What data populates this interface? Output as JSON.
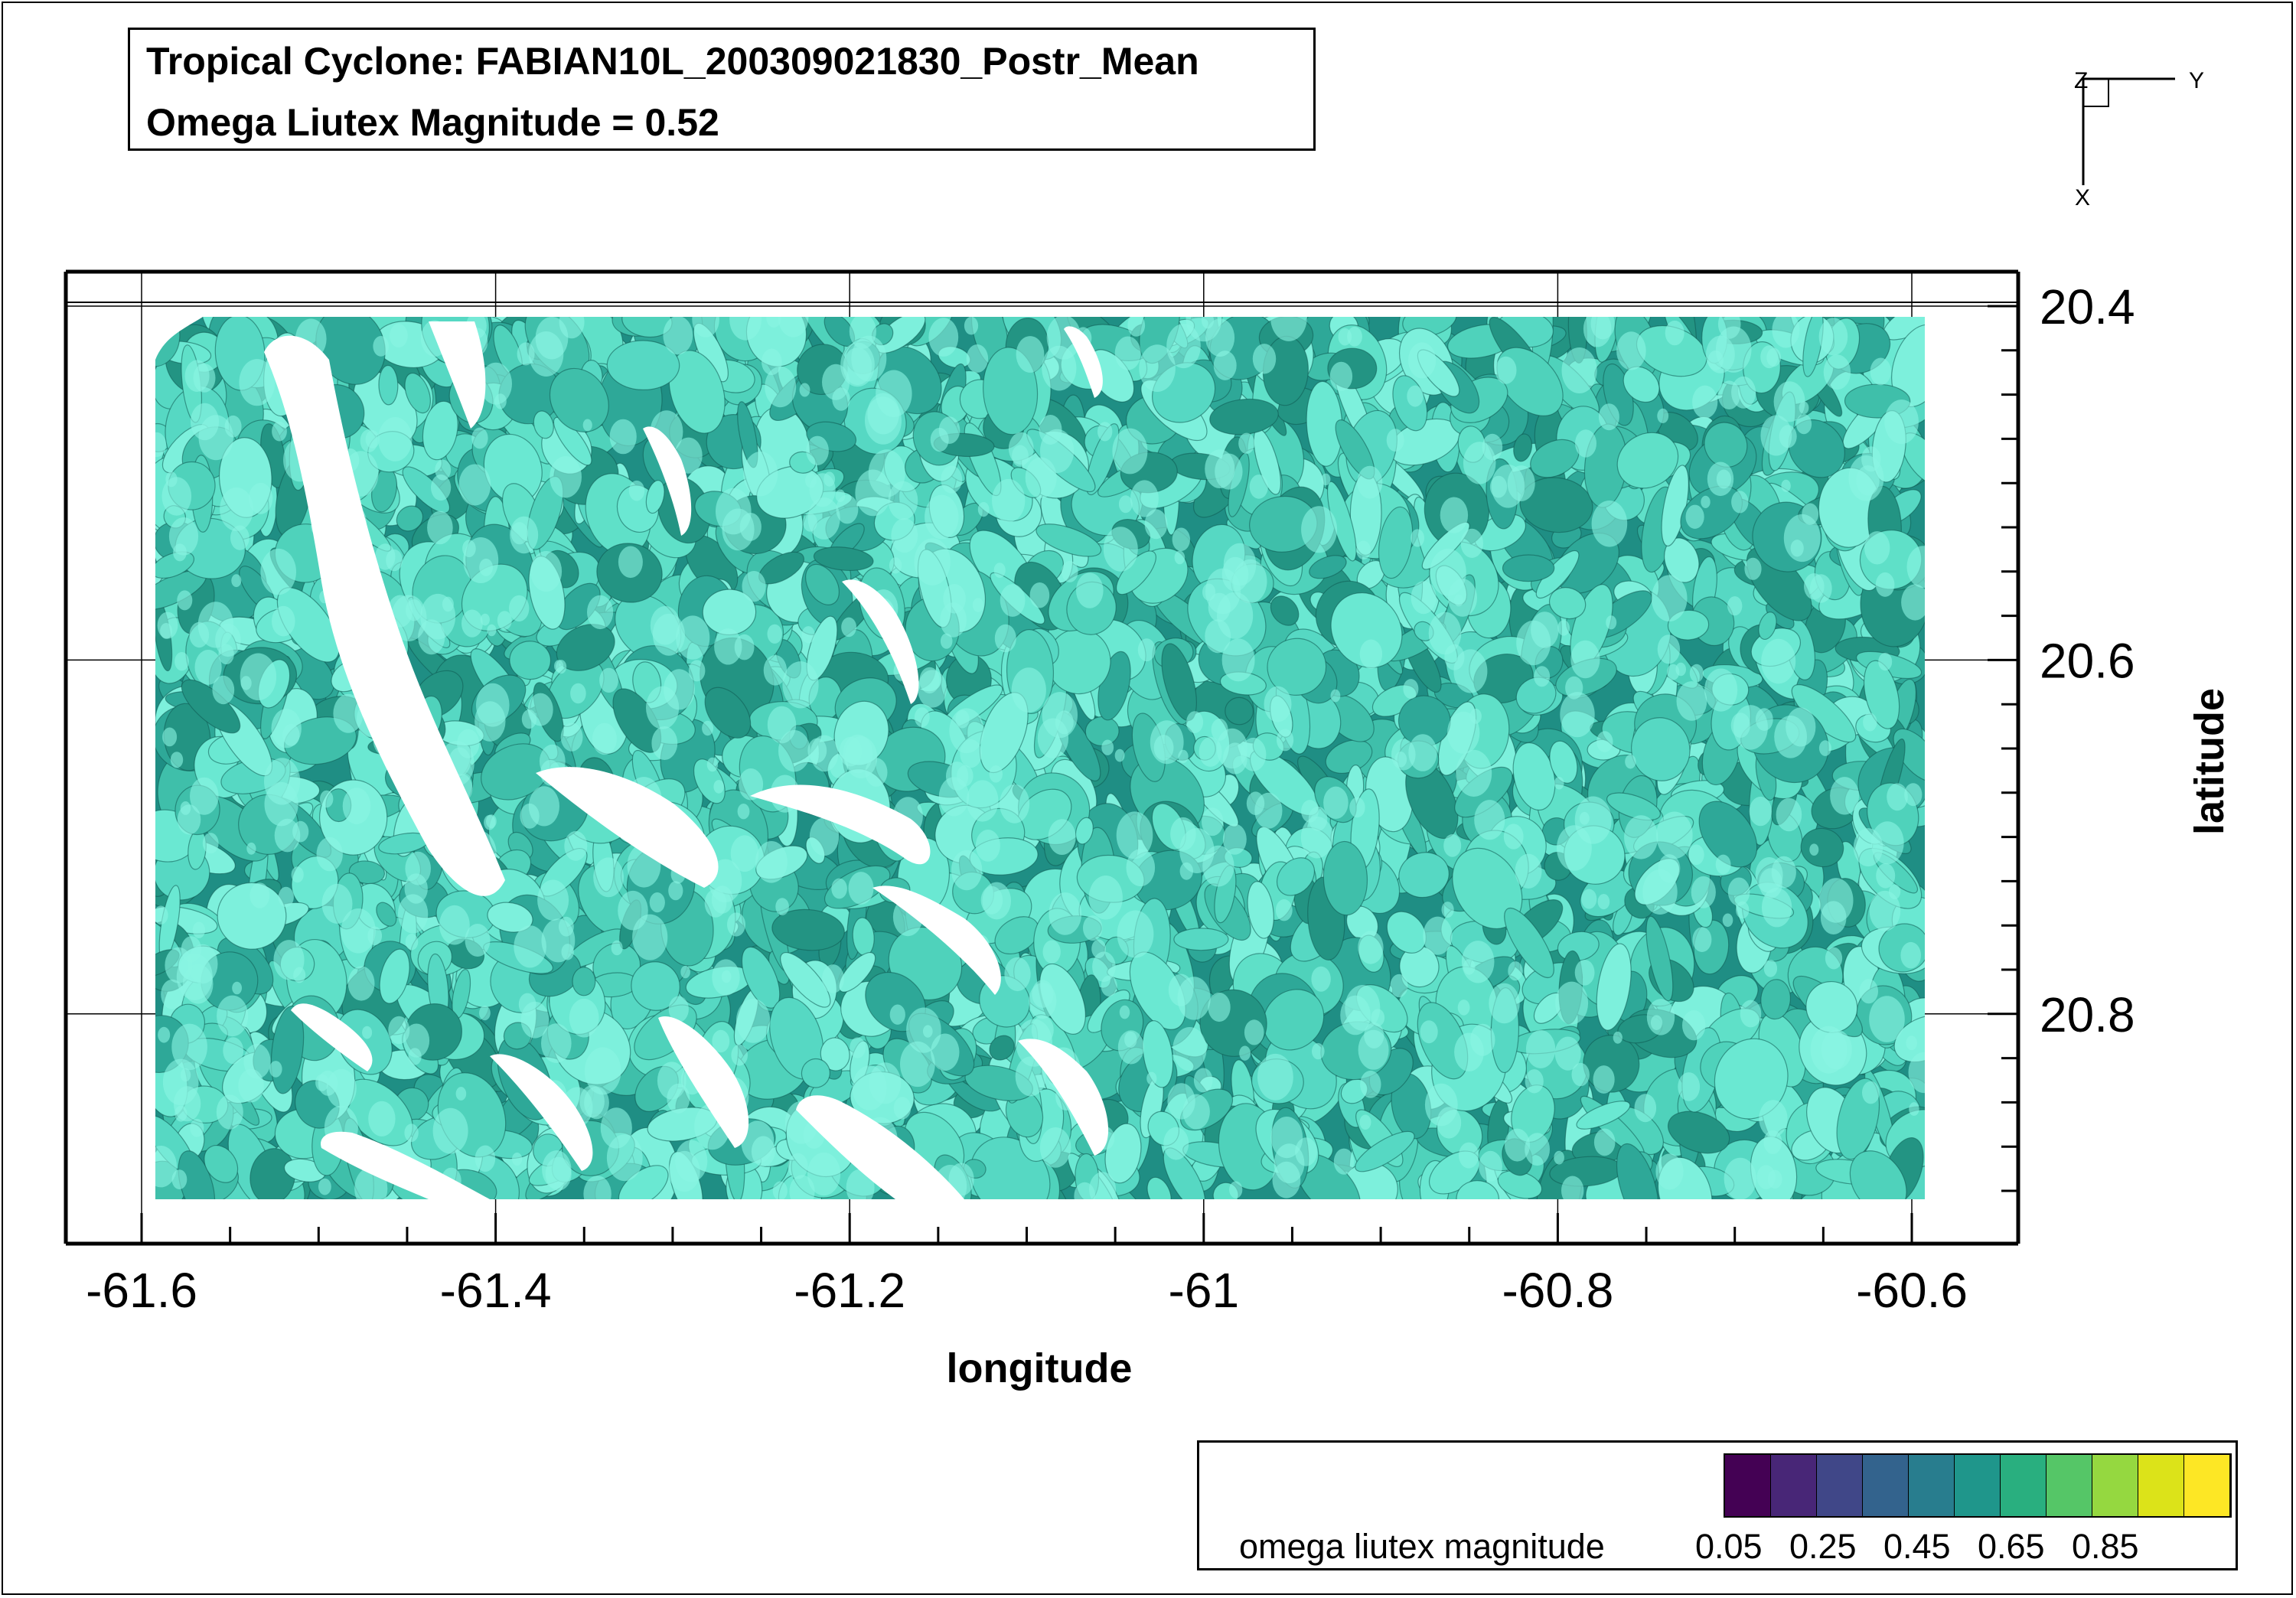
{
  "title": {
    "line1": "Tropical Cyclone: FABIAN10L_200309021830_Postr_Mean",
    "line2": "Omega Liutex Magnitude = 0.52"
  },
  "orientation_axes": {
    "z": "Z",
    "y": "Y",
    "x": "X"
  },
  "chart_data": {
    "type": "isosurface",
    "xlabel": "longitude",
    "ylabel": "latitude",
    "xticks": [
      "-61.6",
      "-61.4",
      "-61.2",
      "-61",
      "-60.8",
      "-60.6"
    ],
    "yticks": [
      "20.4",
      "20.6",
      "20.8"
    ],
    "xlim": [
      -61.6,
      -60.6
    ],
    "ylim": [
      20.4,
      20.9
    ],
    "y_inverted": true,
    "grid": true,
    "isosurface_value": 0.52,
    "isosurface_color": "#5fe0c8",
    "legend": {
      "label": "omega liutex magnitude",
      "ticks": [
        "0.05",
        "0.25",
        "0.45",
        "0.65",
        "0.85"
      ],
      "colors": [
        "#440154",
        "#482677",
        "#404788",
        "#33638d",
        "#287d8e",
        "#1f968b",
        "#29af7f",
        "#55c667",
        "#95d840",
        "#dce319",
        "#fde725"
      ],
      "placement": "bottom-right"
    }
  }
}
